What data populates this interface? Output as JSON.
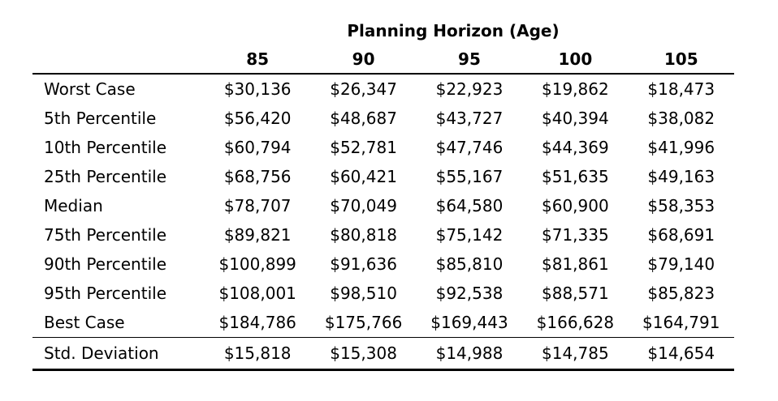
{
  "table": {
    "title": "Planning Horizon (Age)",
    "columns": [
      "85",
      "90",
      "95",
      "100",
      "105"
    ],
    "rows": [
      {
        "label": "Worst Case",
        "values": [
          "$30,136",
          "$26,347",
          "$22,923",
          "$19,862",
          "$18,473"
        ]
      },
      {
        "label": "5th Percentile",
        "values": [
          "$56,420",
          "$48,687",
          "$43,727",
          "$40,394",
          "$38,082"
        ]
      },
      {
        "label": "10th Percentile",
        "values": [
          "$60,794",
          "$52,781",
          "$47,746",
          "$44,369",
          "$41,996"
        ]
      },
      {
        "label": "25th Percentile",
        "values": [
          "$68,756",
          "$60,421",
          "$55,167",
          "$51,635",
          "$49,163"
        ]
      },
      {
        "label": "Median",
        "values": [
          "$78,707",
          "$70,049",
          "$64,580",
          "$60,900",
          "$58,353"
        ]
      },
      {
        "label": "75th Percentile",
        "values": [
          "$89,821",
          "$80,818",
          "$75,142",
          "$71,335",
          "$68,691"
        ]
      },
      {
        "label": "90th Percentile",
        "values": [
          "$100,899",
          "$91,636",
          "$85,810",
          "$81,861",
          "$79,140"
        ]
      },
      {
        "label": "95th Percentile",
        "values": [
          "$108,001",
          "$98,510",
          "$92,538",
          "$88,571",
          "$85,823"
        ]
      },
      {
        "label": "Best Case",
        "values": [
          "$184,786",
          "$175,766",
          "$169,443",
          "$166,628",
          "$164,791"
        ]
      }
    ],
    "summary": {
      "label": "Std. Deviation",
      "values": [
        "$15,818",
        "$15,308",
        "$14,988",
        "$14,785",
        "$14,654"
      ]
    }
  }
}
